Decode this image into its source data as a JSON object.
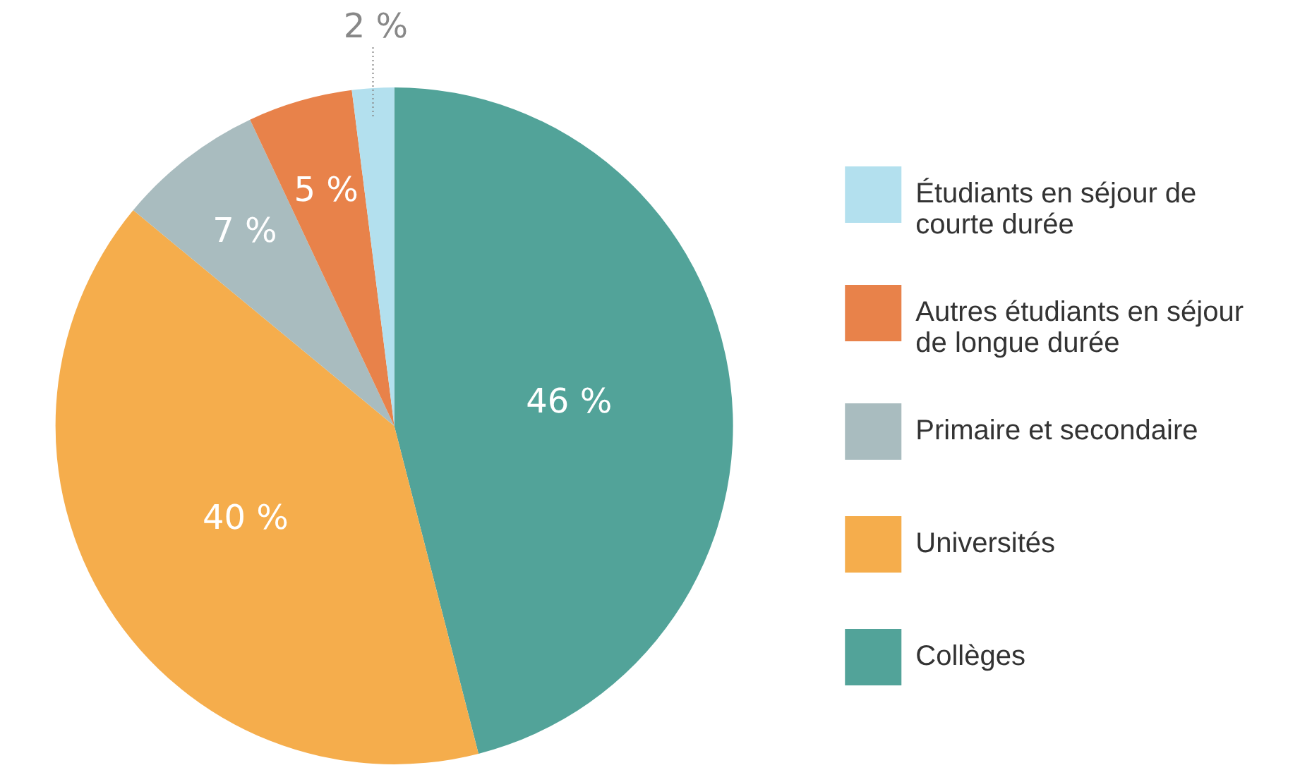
{
  "chart_data": {
    "type": "pie",
    "categories": [
      "Collèges",
      "Universités",
      "Primaire et secondaire",
      "Autres étudiants en séjour de longue durée",
      "Étudiants en séjour de courte durée"
    ],
    "values": [
      46,
      40,
      7,
      5,
      2
    ],
    "colors": [
      "#52a399",
      "#f5ad4c",
      "#a9bcbf",
      "#e8824a",
      "#b3e0ee"
    ],
    "value_labels": [
      "46 %",
      "40 %",
      "7 %",
      "5 %",
      "2 %"
    ],
    "legend": "right"
  }
}
